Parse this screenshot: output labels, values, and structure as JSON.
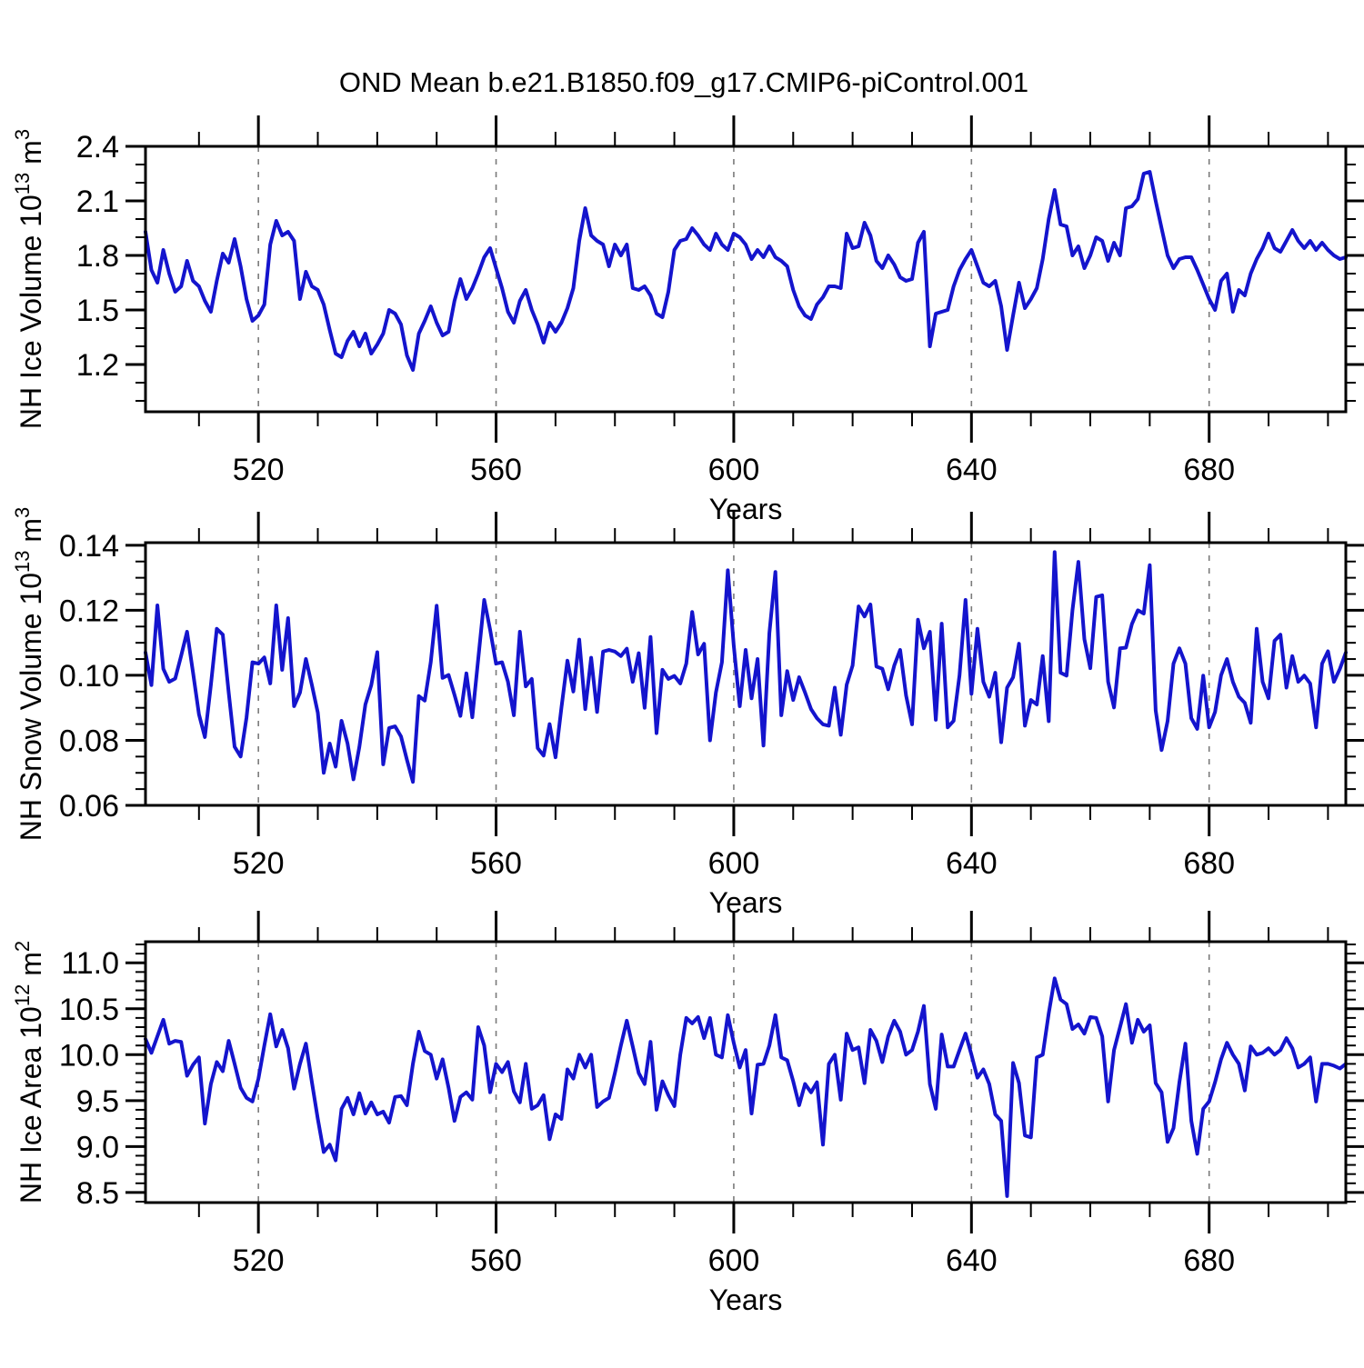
{
  "title": "OND Mean b.e21.B1850.f09_g17.CMIP6-piControl.001",
  "figure": {
    "background": "#ffffff",
    "axis_color": "#000000",
    "line_color": "#1414CD",
    "grid_color": "#7a7a7a",
    "grid_style": "dashed"
  },
  "chart_data": {
    "type": "line",
    "title": "OND Mean b.e21.B1850.f09_g17.CMIP6-piControl.001",
    "x_label": "Years",
    "x_range": [
      501,
      703
    ],
    "x_step": 1,
    "x_ticks": [
      520,
      560,
      600,
      640,
      680
    ],
    "x_tick_labels": [
      "520",
      "560",
      "600",
      "640",
      "680"
    ],
    "x_minor_step": 10,
    "legend": "none",
    "grid": "vertical-dashed-at-major-x-ticks",
    "panels": [
      {
        "id": "nh-ice-volume",
        "y_label": "NH Ice Volume 10^13 m^3",
        "y_label_parts": {
          "base1": "NH Ice Volume 10",
          "sup1": "13",
          "base2": " m",
          "sup2": "3"
        },
        "y_ticks": [
          1.2,
          1.5,
          1.8,
          2.1,
          2.4
        ],
        "y_tick_labels": [
          "1.2",
          "1.5",
          "1.8",
          "2.1",
          "2.4"
        ],
        "y_minor_step": 0.1,
        "ylim": [
          0.94,
          2.4
        ],
        "values": [
          1.93,
          1.72,
          1.65,
          1.83,
          1.7,
          1.6,
          1.63,
          1.77,
          1.66,
          1.63,
          1.55,
          1.49,
          1.66,
          1.81,
          1.76,
          1.89,
          1.74,
          1.56,
          1.44,
          1.47,
          1.53,
          1.86,
          1.99,
          1.91,
          1.93,
          1.88,
          1.56,
          1.71,
          1.63,
          1.61,
          1.53,
          1.39,
          1.26,
          1.24,
          1.33,
          1.38,
          1.3,
          1.37,
          1.26,
          1.31,
          1.37,
          1.5,
          1.48,
          1.42,
          1.25,
          1.17,
          1.37,
          1.44,
          1.52,
          1.43,
          1.36,
          1.38,
          1.55,
          1.67,
          1.56,
          1.62,
          1.7,
          1.79,
          1.84,
          1.73,
          1.62,
          1.49,
          1.43,
          1.55,
          1.61,
          1.5,
          1.42,
          1.32,
          1.43,
          1.38,
          1.43,
          1.51,
          1.62,
          1.88,
          2.06,
          1.91,
          1.88,
          1.86,
          1.74,
          1.86,
          1.8,
          1.86,
          1.62,
          1.61,
          1.63,
          1.58,
          1.48,
          1.46,
          1.6,
          1.83,
          1.88,
          1.89,
          1.95,
          1.91,
          1.86,
          1.83,
          1.92,
          1.86,
          1.83,
          1.92,
          1.9,
          1.86,
          1.78,
          1.83,
          1.79,
          1.85,
          1.79,
          1.77,
          1.74,
          1.61,
          1.52,
          1.47,
          1.45,
          1.53,
          1.57,
          1.63,
          1.63,
          1.62,
          1.92,
          1.84,
          1.85,
          1.98,
          1.91,
          1.77,
          1.73,
          1.8,
          1.75,
          1.68,
          1.66,
          1.67,
          1.87,
          1.93,
          1.3,
          1.48,
          1.49,
          1.5,
          1.63,
          1.72,
          1.78,
          1.83,
          1.74,
          1.65,
          1.63,
          1.66,
          1.52,
          1.28,
          1.47,
          1.65,
          1.51,
          1.56,
          1.62,
          1.78,
          2.0,
          2.16,
          1.97,
          1.96,
          1.8,
          1.85,
          1.73,
          1.8,
          1.9,
          1.88,
          1.77,
          1.87,
          1.8,
          2.06,
          2.07,
          2.11,
          2.25,
          2.26,
          2.1,
          1.95,
          1.8,
          1.73,
          1.78,
          1.79,
          1.79,
          1.72,
          1.64,
          1.56,
          1.5,
          1.66,
          1.7,
          1.49,
          1.61,
          1.58,
          1.7,
          1.78,
          1.84,
          1.92,
          1.84,
          1.82,
          1.88,
          1.94,
          1.88,
          1.84,
          1.88,
          1.83,
          1.87,
          1.83,
          1.8,
          1.78,
          1.79
        ]
      },
      {
        "id": "nh-snow-volume",
        "y_label": "NH Snow Volume 10^13 m^3",
        "y_label_parts": {
          "base1": "NH Snow Volume 10",
          "sup1": "13",
          "base2": " m",
          "sup2": "3"
        },
        "y_ticks": [
          0.06,
          0.08,
          0.1,
          0.12,
          0.14
        ],
        "y_tick_labels": [
          "0.06",
          "0.08",
          "0.10",
          "0.12",
          "0.14"
        ],
        "y_minor_step": 0.005,
        "ylim": [
          0.06,
          0.1408
        ],
        "values": [
          0.107,
          0.097,
          0.1215,
          0.102,
          0.098,
          0.099,
          0.106,
          0.1134,
          0.1008,
          0.088,
          0.081,
          0.097,
          0.1143,
          0.1125,
          0.0947,
          0.078,
          0.075,
          0.087,
          0.104,
          0.1036,
          0.1055,
          0.0975,
          0.1215,
          0.1017,
          0.1176,
          0.0905,
          0.0947,
          0.105,
          0.097,
          0.0885,
          0.07,
          0.079,
          0.0719,
          0.086,
          0.079,
          0.068,
          0.078,
          0.091,
          0.097,
          0.1071,
          0.0726,
          0.0838,
          0.0843,
          0.0812,
          0.074,
          0.0672,
          0.0936,
          0.0922,
          0.104,
          0.1214,
          0.0992,
          0.1001,
          0.094,
          0.0875,
          0.1006,
          0.0871,
          0.105,
          0.1232,
          0.114,
          0.1036,
          0.104,
          0.098,
          0.0877,
          0.1134,
          0.0966,
          0.0989,
          0.0776,
          0.0753,
          0.085,
          0.0748,
          0.09,
          0.1045,
          0.095,
          0.111,
          0.0896,
          0.1054,
          0.0887,
          0.1073,
          0.1078,
          0.1073,
          0.1059,
          0.1082,
          0.098,
          0.1068,
          0.09,
          0.1118,
          0.0822,
          0.1017,
          0.0989,
          0.0998,
          0.0975,
          0.1036,
          0.1195,
          0.1064,
          0.1097,
          0.08,
          0.0947,
          0.104,
          0.1323,
          0.1092,
          0.0905,
          0.1078,
          0.0929,
          0.105,
          0.0784,
          0.113,
          0.1318,
          0.0877,
          0.1013,
          0.0924,
          0.0994,
          0.0947,
          0.0896,
          0.0868,
          0.0849,
          0.0845,
          0.0962,
          0.0817,
          0.0971,
          0.103,
          0.1212,
          0.1181,
          0.1218,
          0.1027,
          0.102,
          0.0957,
          0.103,
          0.1078,
          0.0938,
          0.0849,
          0.1171,
          0.1083,
          0.1134,
          0.0863,
          0.1159,
          0.084,
          0.086,
          0.1,
          0.1232,
          0.0943,
          0.1143,
          0.098,
          0.0934,
          0.1008,
          0.0794,
          0.0962,
          0.0994,
          0.1097,
          0.0845,
          0.0924,
          0.091,
          0.1059,
          0.0859,
          0.1379,
          0.1008,
          0.0999,
          0.12,
          0.1349,
          0.1111,
          0.1022,
          0.1241,
          0.1246,
          0.098,
          0.0901,
          0.1083,
          0.1085,
          0.1158,
          0.12,
          0.119,
          0.1339,
          0.0892,
          0.077,
          0.0859,
          0.1036,
          0.1083,
          0.1036,
          0.0868,
          0.0835,
          0.0999,
          0.084,
          0.0887,
          0.1,
          0.105,
          0.098,
          0.0934,
          0.0915,
          0.0854,
          0.1143,
          0.098,
          0.0929,
          0.1106,
          0.1125,
          0.0962,
          0.1059,
          0.098,
          0.0999,
          0.0975,
          0.084,
          0.1036,
          0.1074,
          0.098,
          0.102,
          0.107
        ]
      },
      {
        "id": "nh-ice-area",
        "y_label": "NH Ice Area 10^12 m^2",
        "y_label_parts": {
          "base1": "NH Ice Area 10",
          "sup1": "12",
          "base2": " m",
          "sup2": "2"
        },
        "y_ticks": [
          8.5,
          9.0,
          9.5,
          10.0,
          10.5,
          11.0
        ],
        "y_tick_labels": [
          "8.5",
          "9.0",
          "9.5",
          "10.0",
          "10.5",
          "11.0"
        ],
        "y_minor_step": 0.1,
        "ylim": [
          8.39,
          11.23
        ],
        "values": [
          10.17,
          10.02,
          10.2,
          10.38,
          10.12,
          10.15,
          10.14,
          9.77,
          9.89,
          9.97,
          9.25,
          9.68,
          9.92,
          9.82,
          10.15,
          9.9,
          9.64,
          9.53,
          9.49,
          9.74,
          10.1,
          10.44,
          10.09,
          10.27,
          10.07,
          9.63,
          9.9,
          10.12,
          9.7,
          9.3,
          8.94,
          9.02,
          8.85,
          9.41,
          9.53,
          9.35,
          9.58,
          9.36,
          9.48,
          9.35,
          9.38,
          9.26,
          9.54,
          9.55,
          9.45,
          9.9,
          10.25,
          10.04,
          10.0,
          9.74,
          9.95,
          9.64,
          9.28,
          9.54,
          9.59,
          9.51,
          10.3,
          10.1,
          9.59,
          9.9,
          9.81,
          9.92,
          9.6,
          9.48,
          9.9,
          9.41,
          9.45,
          9.56,
          9.08,
          9.35,
          9.3,
          9.84,
          9.74,
          10.0,
          9.86,
          10.0,
          9.43,
          9.49,
          9.53,
          9.8,
          10.1,
          10.37,
          10.09,
          9.8,
          9.68,
          10.14,
          9.4,
          9.71,
          9.56,
          9.44,
          10.0,
          10.4,
          10.34,
          10.41,
          10.18,
          10.4,
          10.0,
          9.97,
          10.43,
          10.13,
          9.86,
          10.05,
          9.36,
          9.89,
          9.9,
          10.1,
          10.43,
          9.97,
          9.94,
          9.71,
          9.45,
          9.68,
          9.59,
          9.7,
          9.02,
          9.9,
          10.0,
          9.51,
          10.23,
          10.05,
          10.08,
          9.69,
          10.27,
          10.15,
          9.92,
          10.2,
          10.37,
          10.25,
          10.0,
          10.05,
          10.25,
          10.53,
          9.68,
          9.41,
          10.22,
          9.87,
          9.87,
          10.05,
          10.23,
          10.0,
          9.75,
          9.84,
          9.68,
          9.35,
          9.28,
          8.46,
          9.91,
          9.69,
          9.12,
          9.1,
          9.97,
          10.0,
          10.45,
          10.83,
          10.6,
          10.55,
          10.28,
          10.33,
          10.23,
          10.41,
          10.4,
          10.2,
          9.49,
          10.05,
          10.3,
          10.55,
          10.13,
          10.38,
          10.25,
          10.32,
          9.69,
          9.59,
          9.05,
          9.2,
          9.7,
          10.12,
          9.28,
          8.92,
          9.41,
          9.49,
          9.7,
          9.95,
          10.13,
          10.0,
          9.9,
          9.61,
          10.09,
          10.0,
          10.02,
          10.07,
          10.0,
          10.05,
          10.18,
          10.07,
          9.86,
          9.9,
          9.97,
          9.49,
          9.9,
          9.9,
          9.88,
          9.85,
          9.9
        ]
      }
    ]
  }
}
